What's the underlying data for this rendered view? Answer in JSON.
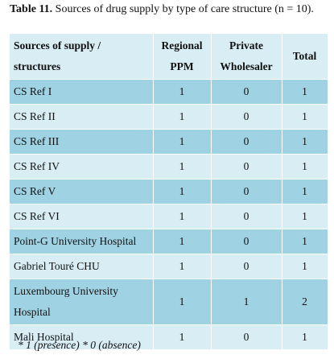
{
  "caption": {
    "label": "Table 11.",
    "text": "Sources of drug supply by type of care structure (n = 10)."
  },
  "table": {
    "columns": [
      "Sources of supply / structures",
      "Regional PPM",
      "Private Wholesaler",
      "Total"
    ],
    "rows": [
      [
        "CS Ref I",
        1,
        0,
        1
      ],
      [
        "CS Ref II",
        1,
        0,
        1
      ],
      [
        "CS Ref III",
        1,
        0,
        1
      ],
      [
        "CS Ref IV",
        1,
        0,
        1
      ],
      [
        "CS Ref V",
        1,
        0,
        1
      ],
      [
        "CS Ref VI",
        1,
        0,
        1
      ],
      [
        "Point-G University Hospital",
        1,
        0,
        1
      ],
      [
        "Gabriel Touré CHU",
        1,
        0,
        1
      ],
      [
        "Luxembourg University Hospital",
        1,
        1,
        2
      ],
      [
        "Mali Hospital",
        1,
        0,
        1
      ]
    ]
  },
  "footnote": "* 1 (presence) * 0 (absence)"
}
